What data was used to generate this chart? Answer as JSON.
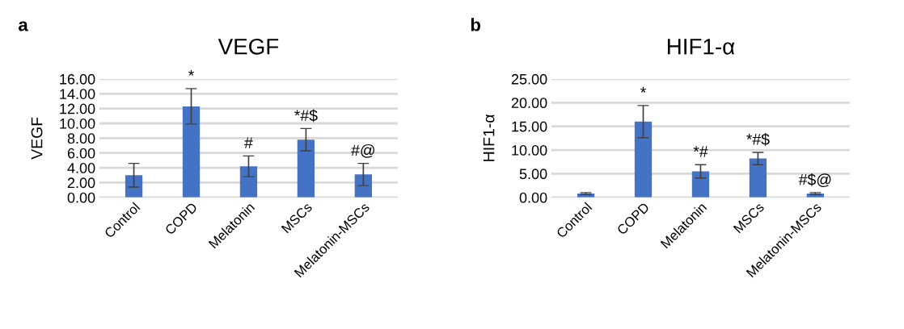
{
  "chart_data": [
    {
      "type": "bar",
      "title": "VEGF",
      "ylabel": "VEGF",
      "categories": [
        "Control",
        "COPD",
        "Melatonin",
        "MSCs",
        "Melatonin-MSCs"
      ],
      "values": [
        3.0,
        12.3,
        4.2,
        7.8,
        3.1
      ],
      "errors": [
        1.6,
        2.4,
        1.4,
        1.5,
        1.5
      ],
      "color": "#4472c4",
      "ylim": [
        0,
        16
      ],
      "yticks": [
        {
          "value": 0,
          "label": "0.00"
        },
        {
          "value": 2,
          "label": "2.00"
        },
        {
          "value": 4,
          "label": "4.00"
        },
        {
          "value": 6,
          "label": "6.00"
        },
        {
          "value": 8,
          "label": "8.00"
        },
        {
          "value": 10,
          "label": "10.00"
        },
        {
          "value": 12,
          "label": "12.00"
        },
        {
          "value": 14,
          "label": "14.00"
        },
        {
          "value": 16,
          "label": "16.00"
        }
      ],
      "grid": "y",
      "value_labels": [
        null,
        "*",
        "#",
        "*#$",
        "#@"
      ],
      "annotations": [
        "a"
      ]
    },
    {
      "type": "bar",
      "title": "HIF1-α",
      "ylabel": "HIF1-α",
      "categories": [
        "Control",
        "COPD",
        "Melatonin",
        "MSCs",
        "Melatonin-MSCs"
      ],
      "values": [
        0.8,
        16.0,
        5.5,
        8.2,
        0.8
      ],
      "errors": [
        0.2,
        3.4,
        1.4,
        1.3,
        0.2
      ],
      "color": "#4472c4",
      "ylim": [
        0,
        25
      ],
      "yticks": [
        {
          "value": 0,
          "label": "0.00"
        },
        {
          "value": 5,
          "label": "5.00"
        },
        {
          "value": 10,
          "label": "10.00"
        },
        {
          "value": 15,
          "label": "15.00"
        },
        {
          "value": 20,
          "label": "20.00"
        },
        {
          "value": 25,
          "label": "25.00"
        }
      ],
      "grid": "y",
      "value_labels": [
        null,
        "*",
        "*#",
        "*#$",
        "#$@"
      ],
      "annotations": [
        "b"
      ]
    }
  ]
}
